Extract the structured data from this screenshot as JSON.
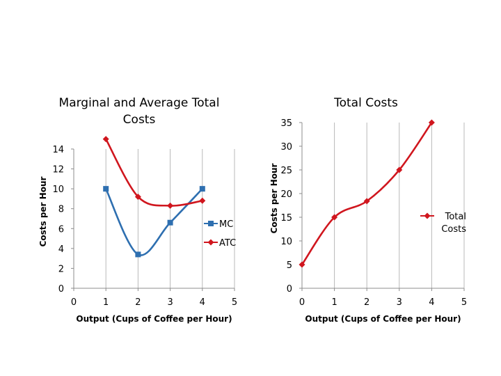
{
  "chart_data": [
    {
      "type": "line",
      "title_lines": [
        "Marginal and Average Total",
        "Costs"
      ],
      "xlabel": "Output (Cups of Coffee per Hour)",
      "ylabel": "Costs per Hour",
      "xlim": [
        0,
        5
      ],
      "ylim": [
        0,
        14
      ],
      "x_ticks": [
        "0",
        "1",
        "2",
        "3",
        "4",
        "5"
      ],
      "y_ticks": [
        "0",
        "2",
        "4",
        "6",
        "8",
        "10",
        "12",
        "14"
      ],
      "grid": "vertical",
      "legend": "right",
      "series": [
        {
          "name": "MC",
          "color": "#2e6fb0",
          "marker": "square",
          "x": [
            1,
            2,
            3,
            4
          ],
          "values": [
            10,
            3.4,
            6.6,
            10
          ]
        },
        {
          "name": "ATC",
          "color": "#d0161e",
          "marker": "diamond",
          "x": [
            1,
            2,
            3,
            4
          ],
          "values": [
            15,
            9.2,
            8.3,
            8.8
          ]
        }
      ]
    },
    {
      "type": "line",
      "title_lines": [
        "Total Costs"
      ],
      "xlabel": "Output (Cups of Coffee per Hour)",
      "ylabel": "Costs per Hour",
      "xlim": [
        0,
        5
      ],
      "ylim": [
        0,
        35
      ],
      "x_ticks": [
        "0",
        "1",
        "2",
        "3",
        "4",
        "5"
      ],
      "y_ticks": [
        "0",
        "5",
        "10",
        "15",
        "20",
        "25",
        "30",
        "35"
      ],
      "grid": "vertical",
      "legend": "right",
      "series": [
        {
          "name": "Total Costs",
          "legend_lines": [
            "Total",
            "Costs"
          ],
          "color": "#d0161e",
          "marker": "diamond",
          "x": [
            0,
            1,
            2,
            3,
            4
          ],
          "values": [
            5,
            15,
            18.4,
            25,
            35
          ]
        }
      ]
    }
  ]
}
